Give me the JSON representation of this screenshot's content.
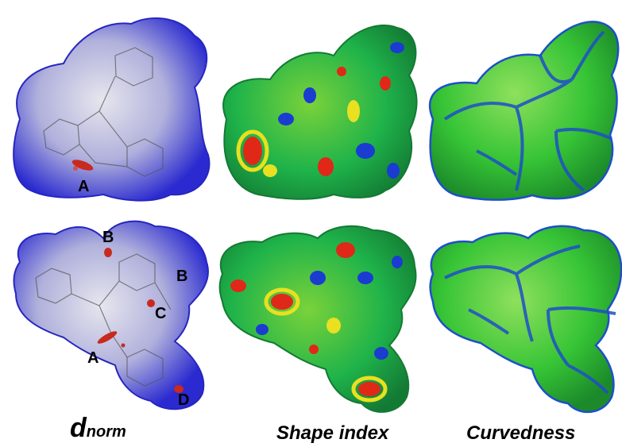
{
  "figure": {
    "columns": [
      {
        "caption_main": "d",
        "caption_sub": "norm",
        "surface": "dnorm"
      },
      {
        "caption_main": "Shape index",
        "surface": "shape-index"
      },
      {
        "caption_main": "Curvedness",
        "surface": "curvedness"
      }
    ],
    "contact_labels": {
      "top": [
        "A"
      ],
      "bottom": [
        "B",
        "B",
        "C",
        "A",
        "D"
      ]
    },
    "colors": {
      "dnorm_blue": "#2a2ad0",
      "dnorm_white": "#d8d8e4",
      "dnorm_red": "#c82a1e",
      "shape_green": "#1fb34a",
      "shape_blue": "#1a3cd0",
      "shape_yellow": "#e8e020",
      "shape_red": "#e02818",
      "curv_green": "#36c436",
      "curv_blue": "#1e4fc8"
    }
  }
}
